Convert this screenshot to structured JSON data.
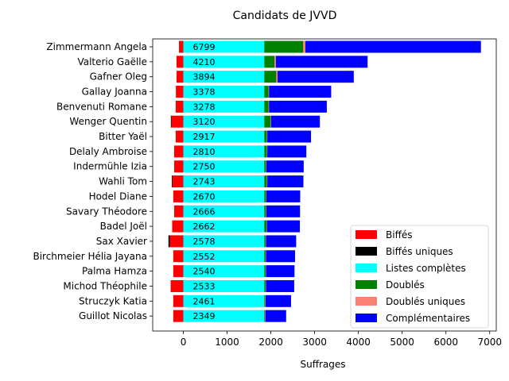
{
  "chart_data": {
    "type": "bar",
    "orientation": "horizontal",
    "stacked": true,
    "title": "Candidats de JVVD",
    "xlabel": "Suffrages",
    "ylabel": "",
    "xlim": [
      -700,
      7150
    ],
    "xticks": [
      "0",
      "1000",
      "2000",
      "3000",
      "4000",
      "5000",
      "6000",
      "7000"
    ],
    "legend_position": "lower-right",
    "categories": [
      "Zimmermann Angela",
      "Valterio Gaëlle",
      "Gafner Oleg",
      "Gallay Joanna",
      "Benvenuti Romane",
      "Wenger Quentin",
      "Bitter Yaël",
      "Delaly Ambroise",
      "Indermühle Izia",
      "Wahli Tom",
      "Hodel Diane",
      "Savary Théodore",
      "Badel Joël",
      "Sax Xavier",
      "Birchmeier Hélia Jayana",
      "Palma Hamza",
      "Michod Théophile",
      "Struczyk Katia",
      "Guillot Nicolas"
    ],
    "totals": [
      "6799",
      "4210",
      "3894",
      "3378",
      "3278",
      "3120",
      "2917",
      "2810",
      "2750",
      "2743",
      "2670",
      "2666",
      "2662",
      "2578",
      "2552",
      "2540",
      "2533",
      "2461",
      "2349"
    ],
    "series": [
      {
        "name": "Biffés",
        "color": "#ff0000",
        "values": [
          -100,
          -155,
          -155,
          -170,
          -175,
          -270,
          -175,
          -210,
          -210,
          -250,
          -230,
          -210,
          -255,
          -310,
          -230,
          -230,
          -290,
          -230,
          -230
        ]
      },
      {
        "name": "Biffés uniques",
        "color": "#000000",
        "values": [
          0,
          0,
          0,
          0,
          0,
          -15,
          0,
          0,
          0,
          -12,
          0,
          0,
          0,
          -30,
          0,
          0,
          0,
          0,
          0
        ]
      },
      {
        "name": "Listes complètes",
        "color": "#00ffff",
        "values": [
          1849,
          1849,
          1849,
          1849,
          1849,
          1849,
          1849,
          1849,
          1849,
          1849,
          1849,
          1849,
          1849,
          1849,
          1849,
          1849,
          1849,
          1849,
          1849
        ]
      },
      {
        "name": "Doublés",
        "color": "#008000",
        "values": [
          890,
          235,
          275,
          100,
          100,
          145,
          60,
          60,
          40,
          60,
          40,
          40,
          50,
          30,
          30,
          30,
          30,
          20,
          15
        ]
      },
      {
        "name": "Doublés uniques",
        "color": "#fa8072",
        "values": [
          50,
          30,
          30,
          10,
          10,
          10,
          10,
          10,
          10,
          10,
          10,
          10,
          10,
          10,
          10,
          10,
          10,
          10,
          10
        ]
      },
      {
        "name": "Complémentaires",
        "color": "#0000ff",
        "values": [
          4010,
          2096,
          1740,
          1419,
          1319,
          1116,
          998,
          891,
          851,
          824,
          771,
          767,
          753,
          689,
          663,
          651,
          644,
          582,
          475
        ]
      }
    ]
  }
}
